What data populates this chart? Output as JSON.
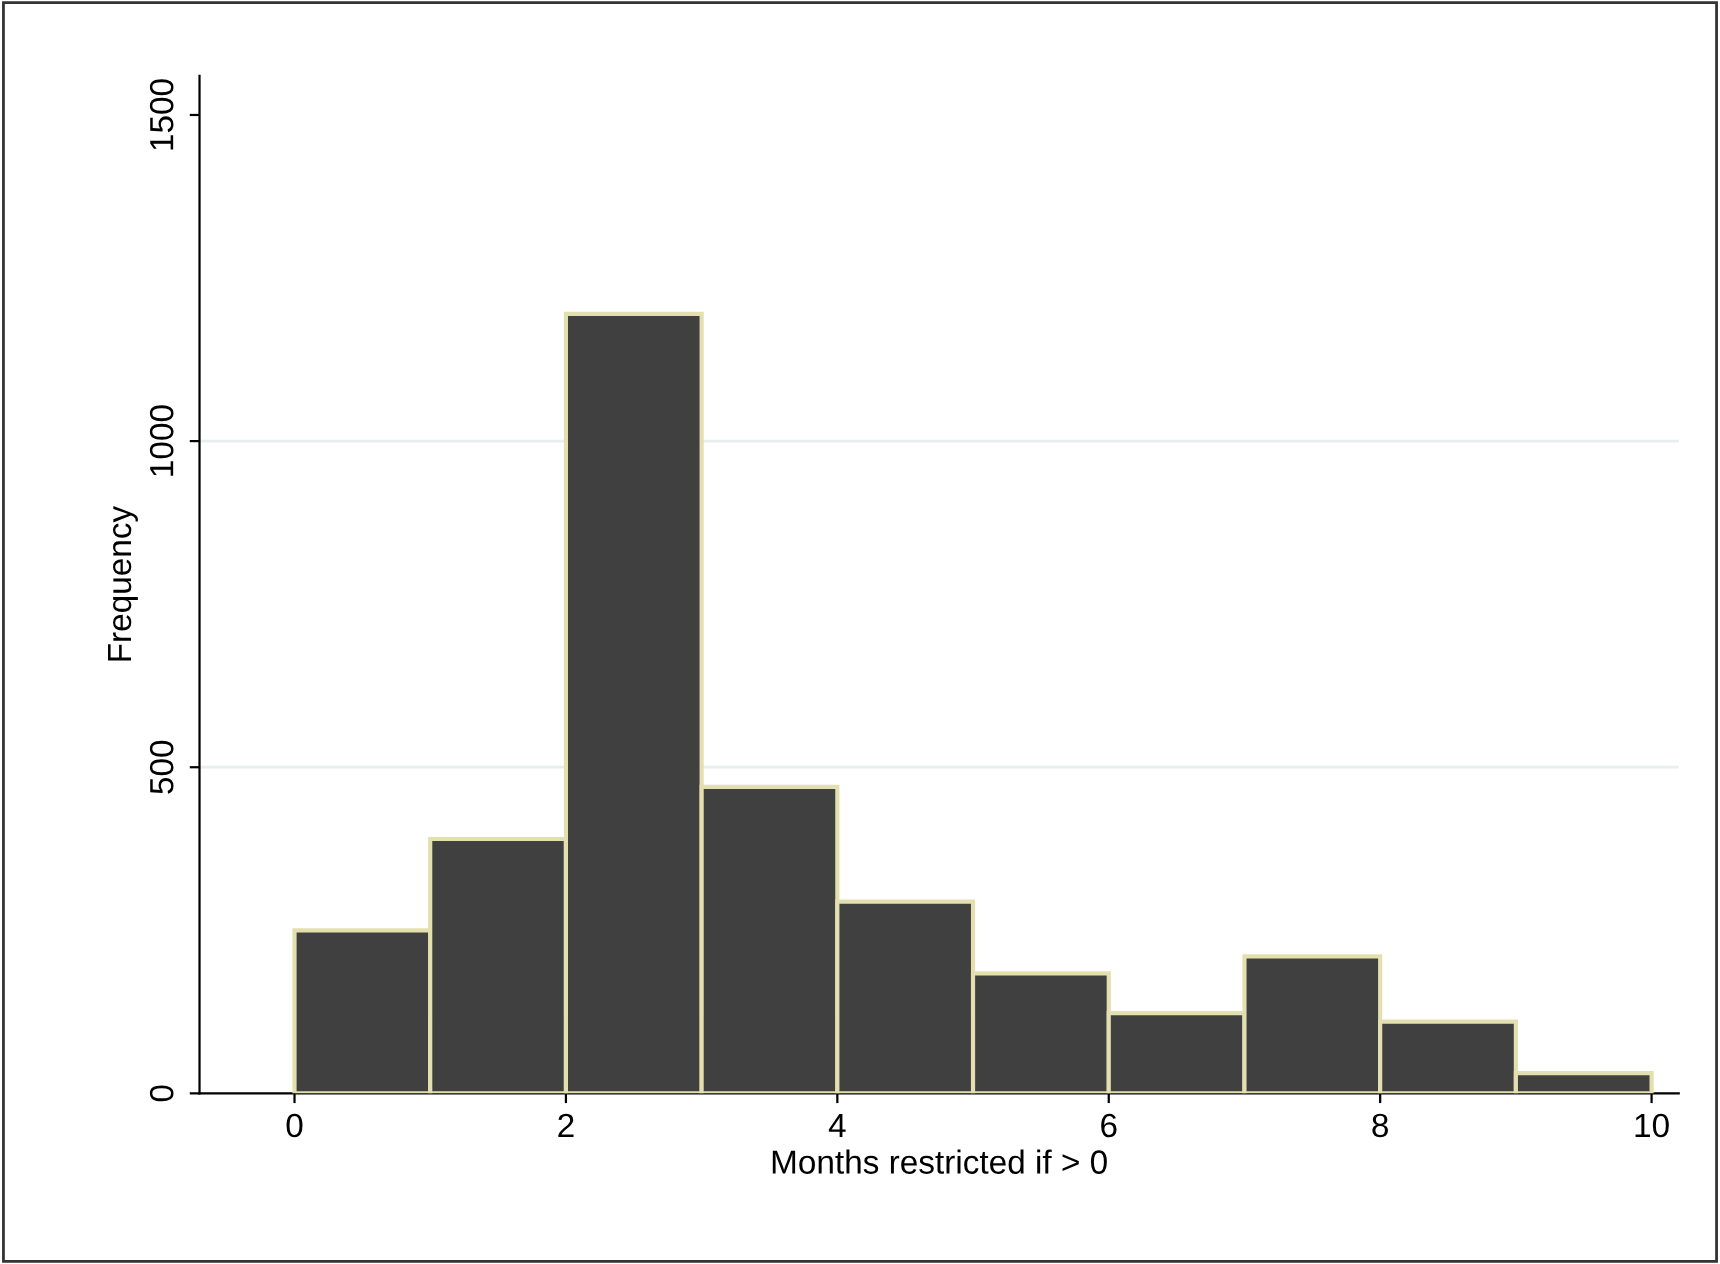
{
  "chart_data": {
    "type": "histogram",
    "xlabel": "Months restricted if > 0",
    "ylabel": "Frequency",
    "bins": [
      0,
      1,
      2,
      3,
      4,
      5,
      6,
      7,
      8,
      9,
      10
    ],
    "values": [
      250,
      390,
      1195,
      470,
      294,
      184,
      123,
      210,
      110,
      31
    ],
    "color": "#404040",
    "xlim": [
      -0.7,
      10.2
    ],
    "ylim": [
      0,
      1560
    ],
    "xticks": [
      0,
      2,
      4,
      6,
      8,
      10
    ],
    "yticks": [
      0,
      500,
      1000,
      1500
    ],
    "grid": "y"
  }
}
